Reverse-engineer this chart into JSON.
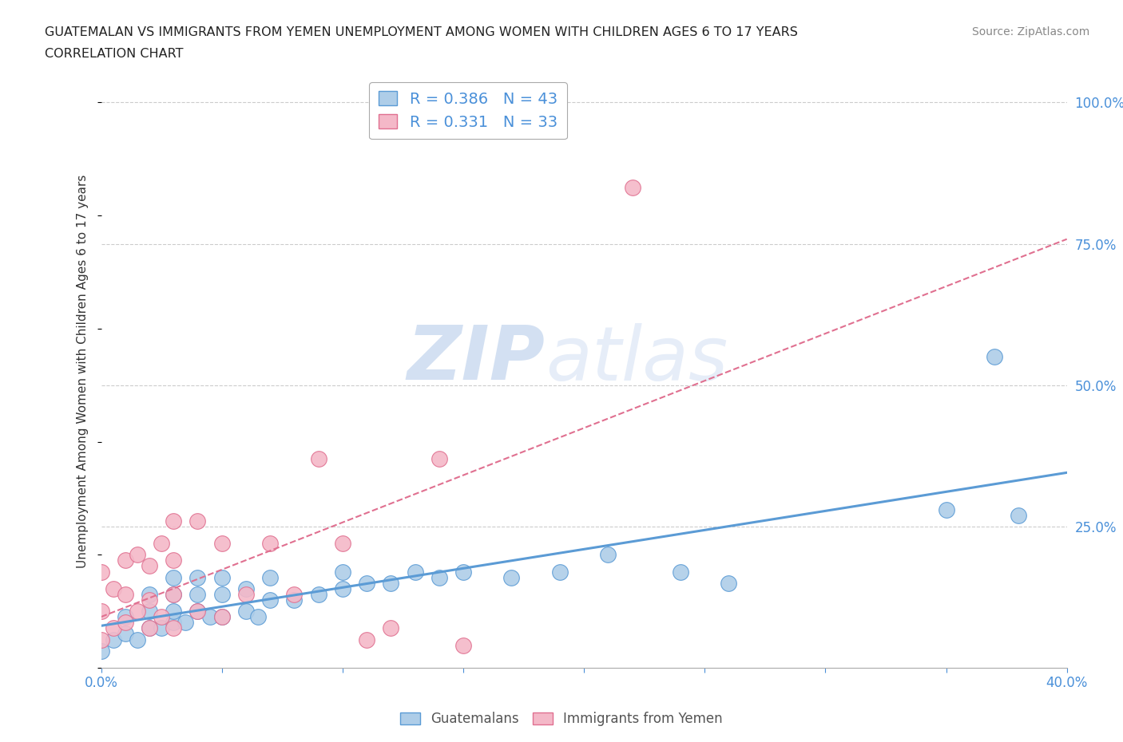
{
  "title_line1": "GUATEMALAN VS IMMIGRANTS FROM YEMEN UNEMPLOYMENT AMONG WOMEN WITH CHILDREN AGES 6 TO 17 YEARS",
  "title_line2": "CORRELATION CHART",
  "source_text": "Source: ZipAtlas.com",
  "ylabel": "Unemployment Among Women with Children Ages 6 to 17 years",
  "xlim": [
    0.0,
    0.4
  ],
  "ylim": [
    0.0,
    1.05
  ],
  "xtick_positions": [
    0.0,
    0.05,
    0.1,
    0.15,
    0.2,
    0.25,
    0.3,
    0.35,
    0.4
  ],
  "ytick_right_labels": [
    "",
    "25.0%",
    "50.0%",
    "75.0%",
    "100.0%"
  ],
  "ytick_right_values": [
    0.0,
    0.25,
    0.5,
    0.75,
    1.0
  ],
  "blue_R": 0.386,
  "blue_N": 43,
  "pink_R": 0.331,
  "pink_N": 33,
  "blue_color": "#aecde8",
  "blue_edge_color": "#5b9bd5",
  "pink_color": "#f4b8c8",
  "pink_edge_color": "#e07090",
  "blue_line_color": "#5b9bd5",
  "pink_line_color": "#e07090",
  "blue_scatter_x": [
    0.0,
    0.005,
    0.01,
    0.01,
    0.015,
    0.02,
    0.02,
    0.02,
    0.025,
    0.03,
    0.03,
    0.03,
    0.03,
    0.035,
    0.04,
    0.04,
    0.04,
    0.045,
    0.05,
    0.05,
    0.05,
    0.06,
    0.06,
    0.065,
    0.07,
    0.07,
    0.08,
    0.09,
    0.1,
    0.1,
    0.11,
    0.12,
    0.13,
    0.14,
    0.15,
    0.17,
    0.19,
    0.21,
    0.24,
    0.26,
    0.35,
    0.37,
    0.38
  ],
  "blue_scatter_y": [
    0.03,
    0.05,
    0.06,
    0.09,
    0.05,
    0.07,
    0.1,
    0.13,
    0.07,
    0.08,
    0.1,
    0.13,
    0.16,
    0.08,
    0.1,
    0.13,
    0.16,
    0.09,
    0.09,
    0.13,
    0.16,
    0.1,
    0.14,
    0.09,
    0.12,
    0.16,
    0.12,
    0.13,
    0.14,
    0.17,
    0.15,
    0.15,
    0.17,
    0.16,
    0.17,
    0.16,
    0.17,
    0.2,
    0.17,
    0.15,
    0.28,
    0.55,
    0.27
  ],
  "pink_scatter_x": [
    0.0,
    0.0,
    0.0,
    0.005,
    0.005,
    0.01,
    0.01,
    0.01,
    0.015,
    0.015,
    0.02,
    0.02,
    0.02,
    0.025,
    0.025,
    0.03,
    0.03,
    0.03,
    0.03,
    0.04,
    0.04,
    0.05,
    0.05,
    0.06,
    0.07,
    0.08,
    0.09,
    0.1,
    0.11,
    0.12,
    0.14,
    0.15,
    0.22
  ],
  "pink_scatter_y": [
    0.05,
    0.1,
    0.17,
    0.07,
    0.14,
    0.08,
    0.13,
    0.19,
    0.1,
    0.2,
    0.07,
    0.12,
    0.18,
    0.09,
    0.22,
    0.07,
    0.13,
    0.19,
    0.26,
    0.1,
    0.26,
    0.09,
    0.22,
    0.13,
    0.22,
    0.13,
    0.37,
    0.22,
    0.05,
    0.07,
    0.37,
    0.04,
    0.85
  ],
  "watermark_zip": "ZIP",
  "watermark_atlas": "atlas",
  "background_color": "#ffffff",
  "grid_color": "#cccccc",
  "blue_line_start_x": 0.0,
  "blue_line_end_x": 0.4,
  "pink_line_start_x": 0.0,
  "pink_line_end_x": 0.4
}
